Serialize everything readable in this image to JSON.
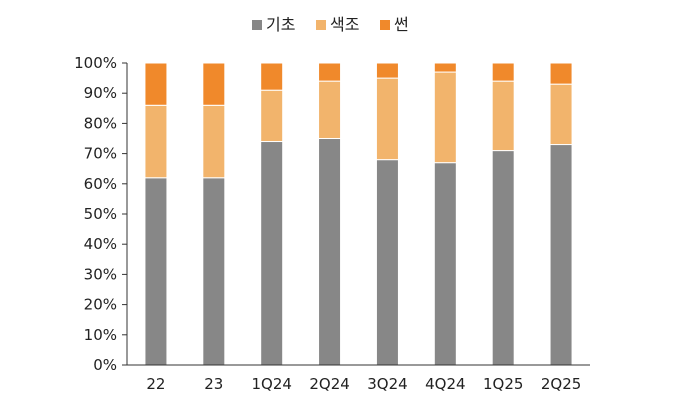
{
  "chart_data": {
    "type": "bar",
    "stacked": true,
    "categories": [
      "22",
      "23",
      "1Q24",
      "2Q24",
      "3Q24",
      "4Q24",
      "1Q25",
      "2Q25"
    ],
    "series": [
      {
        "name": "기초",
        "color": "#878787",
        "values": [
          62,
          62,
          74,
          75,
          68,
          67,
          71,
          73
        ]
      },
      {
        "name": "색조",
        "color": "#F2B46C",
        "values": [
          24,
          24,
          17,
          19,
          27,
          30,
          23,
          20
        ]
      },
      {
        "name": "썬",
        "color": "#F0892B",
        "values": [
          14,
          14,
          9,
          6,
          5,
          3,
          6,
          7
        ]
      }
    ],
    "ylim": [
      0,
      100
    ],
    "yticks": [
      "0%",
      "10%",
      "20%",
      "30%",
      "40%",
      "50%",
      "60%",
      "70%",
      "80%",
      "90%",
      "100%"
    ],
    "legend_position": "top-center",
    "grid": false
  }
}
